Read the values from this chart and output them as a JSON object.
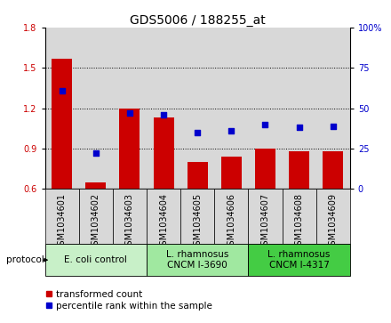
{
  "title": "GDS5006 / 188255_at",
  "samples": [
    "GSM1034601",
    "GSM1034602",
    "GSM1034603",
    "GSM1034604",
    "GSM1034605",
    "GSM1034606",
    "GSM1034607",
    "GSM1034608",
    "GSM1034609"
  ],
  "transformed_count": [
    1.57,
    0.65,
    1.2,
    1.13,
    0.8,
    0.84,
    0.9,
    0.88,
    0.88
  ],
  "percentile_rank": [
    61,
    22,
    47,
    46,
    35,
    36,
    40,
    38,
    39
  ],
  "ylim_left": [
    0.6,
    1.8
  ],
  "ylim_right": [
    0,
    100
  ],
  "yticks_left": [
    0.6,
    0.9,
    1.2,
    1.5,
    1.8
  ],
  "yticks_right": [
    0,
    25,
    50,
    75,
    100
  ],
  "groups": [
    {
      "label": "E. coli control",
      "indices": [
        0,
        1,
        2
      ],
      "color": "#c8f0c8"
    },
    {
      "label": "L. rhamnosus\nCNCM I-3690",
      "indices": [
        3,
        4,
        5
      ],
      "color": "#a0e8a0"
    },
    {
      "label": "L. rhamnosus\nCNCM I-4317",
      "indices": [
        6,
        7,
        8
      ],
      "color": "#44cc44"
    }
  ],
  "bar_color": "#cc0000",
  "scatter_color": "#0000cc",
  "col_bg_color": "#d8d8d8",
  "bar_width": 0.6,
  "title_fontsize": 10,
  "tick_fontsize": 7,
  "label_fontsize": 7.5,
  "legend_fontsize": 7.5
}
